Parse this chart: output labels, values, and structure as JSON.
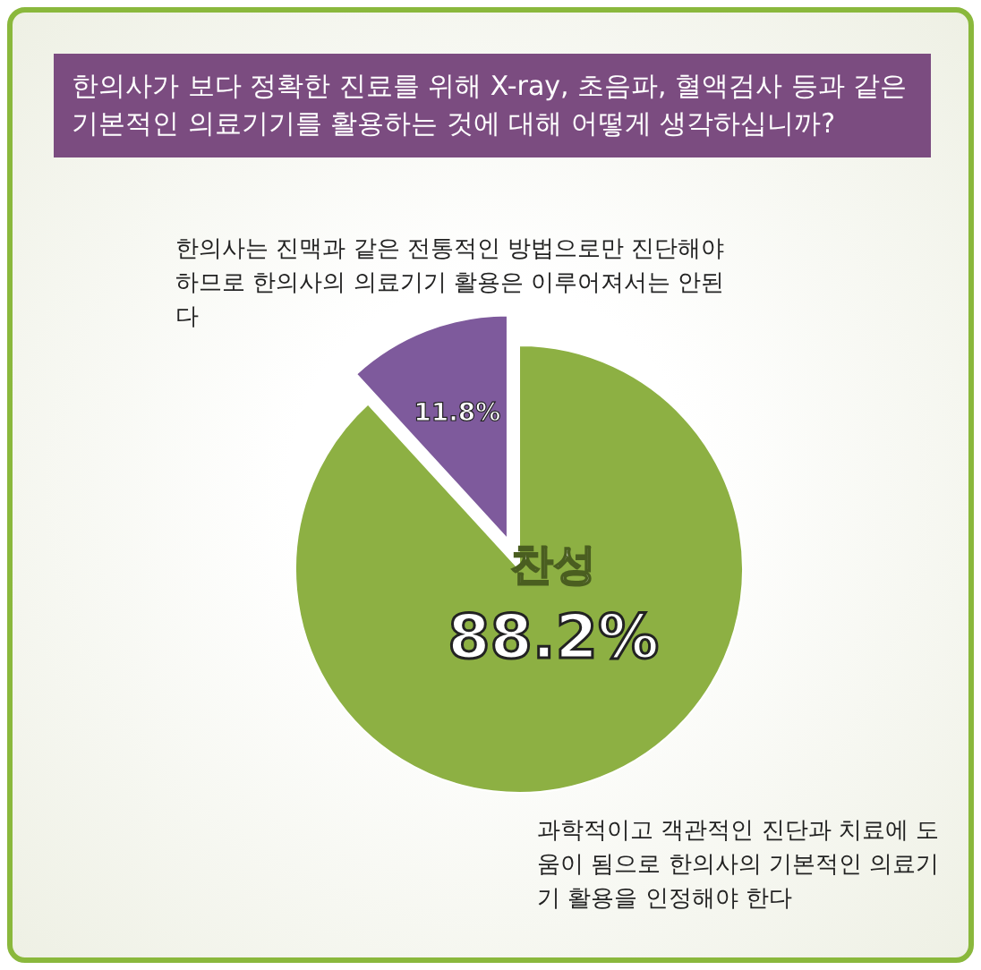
{
  "chart_data": {
    "type": "pie",
    "title": "한의사가 보다 정확한 진료를 위해 X-ray, 초음파, 혈액검사 등과 같은 기본적인 의료기기를 활용하는 것에 대해 어떻게 생각하십니까?",
    "categories": [
      "찬성",
      "한의사는 진맥과 같은 전통적인 방법으로만 진단해야하므로 한의사의 의료기기 활용은 이루어져서는 안된다"
    ],
    "values": [
      88.2,
      11.8
    ],
    "colors": [
      "#8db043",
      "#7e5a9c"
    ],
    "value_labels": [
      "88.2%",
      "11.8%"
    ],
    "annotations": [
      "과학적이고 객관적인 진단과 치료에 도움이 됨으로 한의사의 기본적인 의료기기 활용을 인정해야 한다"
    ]
  }
}
